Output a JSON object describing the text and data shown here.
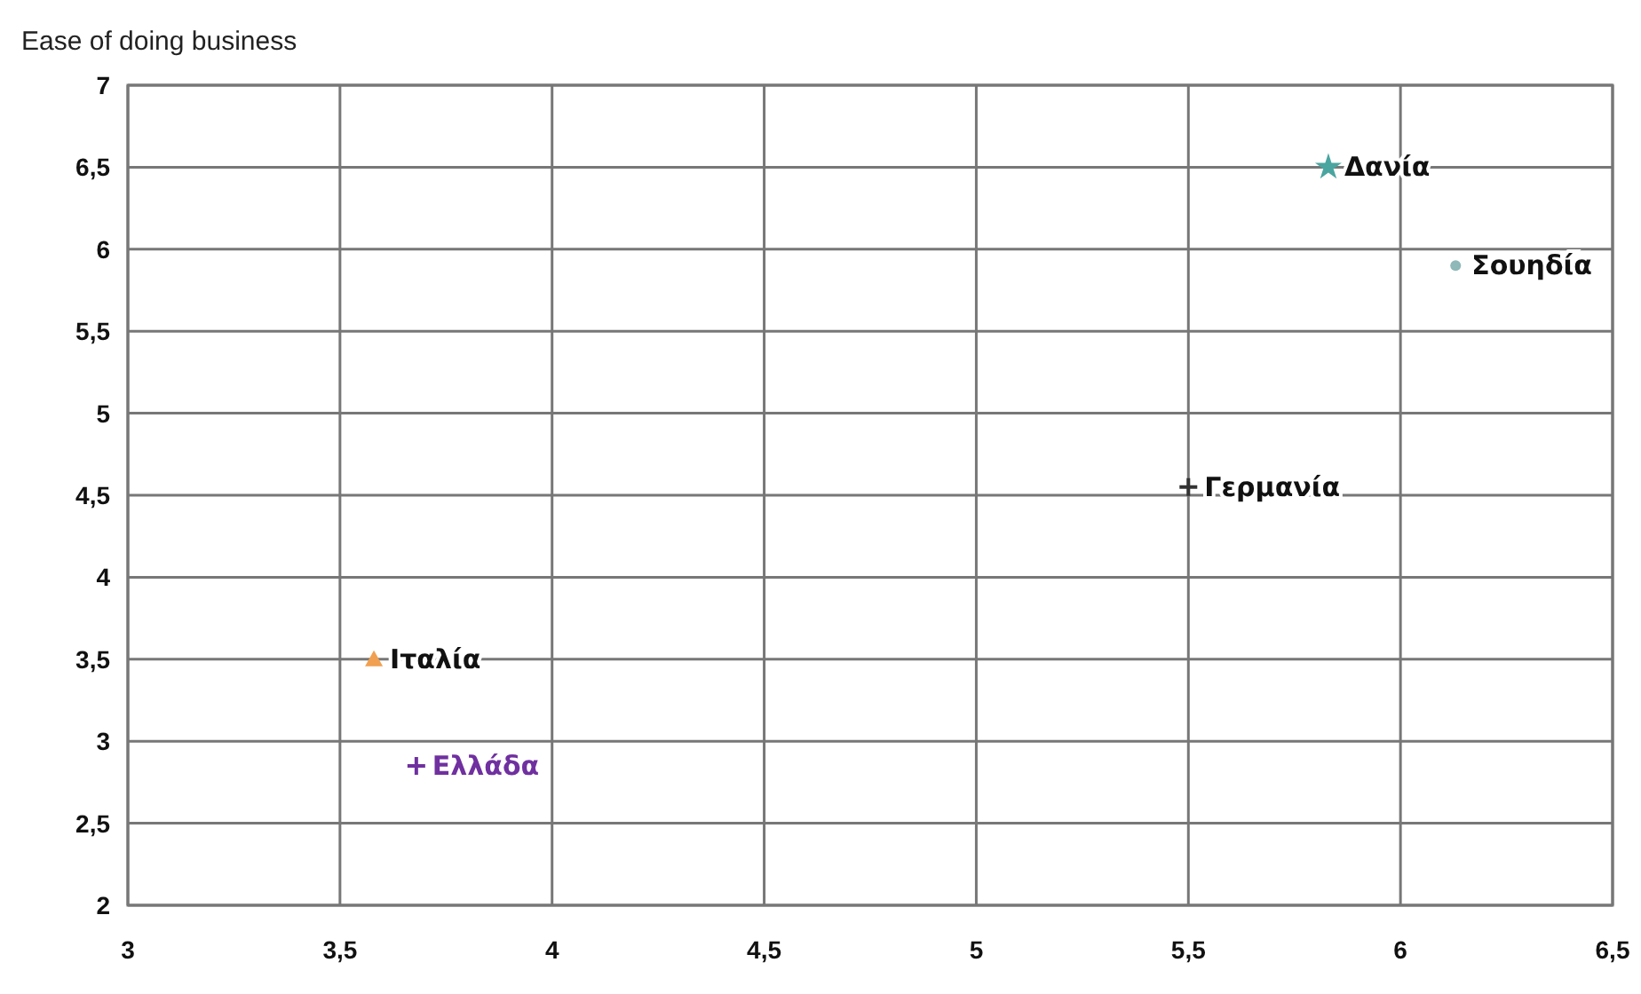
{
  "chart_data": {
    "type": "scatter",
    "ylabel": "Ease of doing business",
    "xlim": [
      3,
      6.5
    ],
    "ylim": [
      2,
      7
    ],
    "xticks": [
      3,
      {
        "value": 3.5,
        "label": "3,5"
      },
      4,
      {
        "value": 4.5,
        "label": "4,5"
      },
      5,
      {
        "value": 5.5,
        "label": "5,5"
      },
      6,
      {
        "value": 6.5,
        "label": "6,5"
      }
    ],
    "yticks": [
      2,
      {
        "value": 2.5,
        "label": "2,5"
      },
      3,
      {
        "value": 3.5,
        "label": "3,5"
      },
      4,
      {
        "value": 4.5,
        "label": "4,5"
      },
      5,
      {
        "value": 5.5,
        "label": "5,5"
      },
      6,
      {
        "value": 6.5,
        "label": "6,5"
      },
      7
    ],
    "grid": true,
    "series": [
      {
        "name": "Δανία",
        "color": "#4aa5a0",
        "marker": "star",
        "x": [
          5.83
        ],
        "values": [
          6.5
        ]
      },
      {
        "name": "Σουηδία",
        "color": "#8fb8b8",
        "marker": "circle",
        "x": [
          6.13
        ],
        "values": [
          5.9
        ]
      },
      {
        "name": "Γερμανία",
        "color": "#333333",
        "marker": "cross",
        "x": [
          5.5
        ],
        "values": [
          4.55
        ]
      },
      {
        "name": "Ιταλία",
        "color": "#f0a050",
        "marker": "triangle",
        "x": [
          3.58
        ],
        "values": [
          3.5
        ]
      },
      {
        "name": "Ελλάδα",
        "color": "#7030a0",
        "marker": "cross",
        "x": [
          3.68
        ],
        "values": [
          2.85
        ]
      }
    ]
  }
}
